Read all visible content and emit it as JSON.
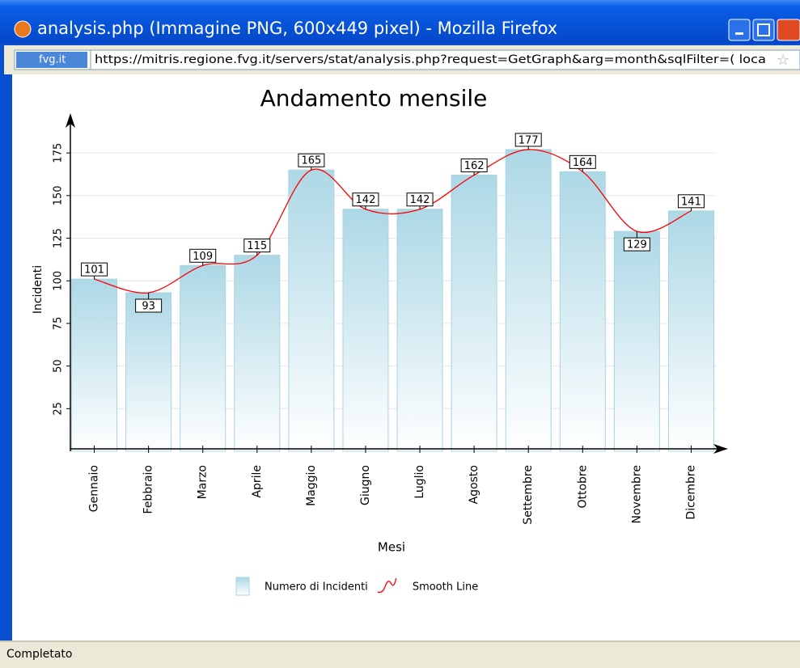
{
  "window": {
    "title": "analysis.php (Immagine PNG, 600x449 pixel) - Mozilla Firefox",
    "site": "fvg.it",
    "url": "https://mitris.regione.fvg.it/servers/stat/analysis.php?request=GetGraph&arg=month&sqlFilter=( loca",
    "status": "Completato"
  },
  "chart_data": {
    "type": "bar",
    "title": "Andamento mensile",
    "x_label": "Mesi",
    "y_label": "Incidenti",
    "categories": [
      "Gennaio",
      "Febbraio",
      "Marzo",
      "Aprile",
      "Maggio",
      "Giugno",
      "Luglio",
      "Agosto",
      "Settembre",
      "Ottobre",
      "Novembre",
      "Dicembre"
    ],
    "series": [
      {
        "name": "Numero di Incidenti",
        "type": "bar",
        "color": "#add8e6",
        "values": [
          101,
          93,
          109,
          115,
          165,
          142,
          142,
          162,
          177,
          164,
          129,
          141
        ]
      },
      {
        "name": "Smooth Line",
        "type": "line",
        "color": "#ff0000",
        "values": [
          101,
          93,
          109,
          115,
          165,
          142,
          142,
          162,
          177,
          164,
          129,
          141
        ]
      }
    ],
    "ylim": [
      0,
      195
    ],
    "yticks": [
      25,
      50,
      75,
      100,
      125,
      150,
      175
    ],
    "grid": true
  }
}
